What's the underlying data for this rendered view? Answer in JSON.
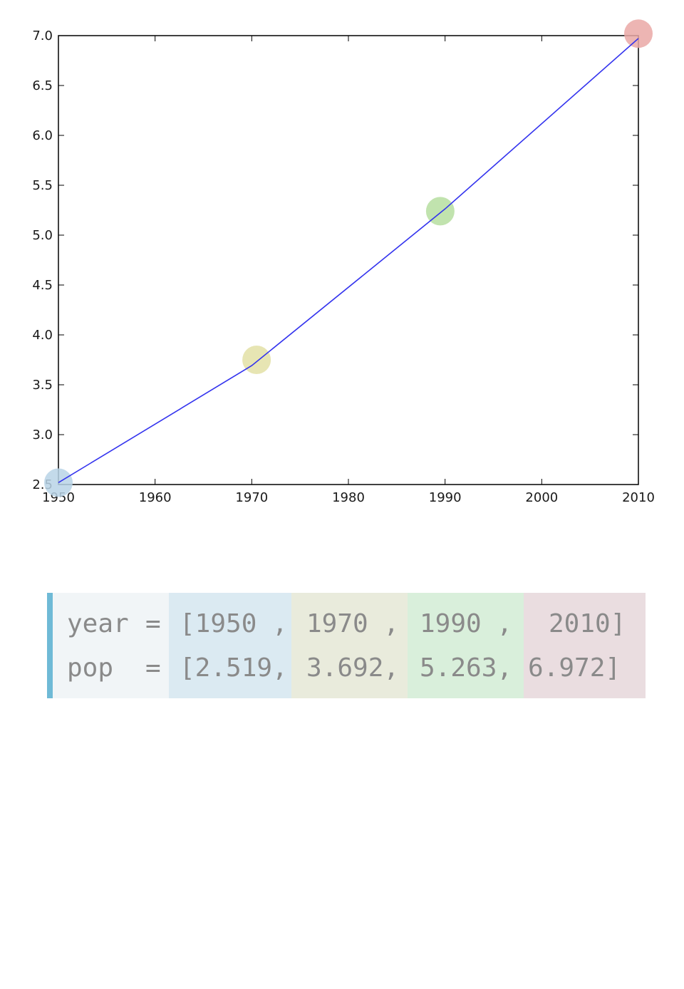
{
  "chart_data": {
    "type": "line",
    "x": [
      1950,
      1970,
      1990,
      2010
    ],
    "y": [
      2.519,
      3.692,
      5.263,
      6.972
    ],
    "xlim": [
      1950,
      2010
    ],
    "ylim": [
      2.5,
      7.0
    ],
    "xticks": [
      "1950",
      "1960",
      "1970",
      "1980",
      "1990",
      "2000",
      "2010"
    ],
    "yticks": [
      "2.5",
      "3.0",
      "3.5",
      "4.0",
      "4.5",
      "5.0",
      "5.5",
      "6.0",
      "6.5",
      "7.0"
    ],
    "line_color": "#3333ee",
    "highlight_markers": [
      {
        "x": 1950,
        "y": 2.519,
        "color": "#b9d4e6"
      },
      {
        "x": 1970.5,
        "y": 3.75,
        "color": "#e3e0a6"
      },
      {
        "x": 1989.5,
        "y": 5.24,
        "color": "#b6dea0"
      },
      {
        "x": 2010,
        "y": 7.02,
        "color": "#eaa8a6"
      }
    ],
    "grid": false,
    "title": "",
    "xlabel": "",
    "ylabel": ""
  },
  "code": {
    "row1": {
      "name": "year",
      "eq": "=",
      "c1": "[1950 ,",
      "c2": "1970 ,",
      "c3": "1990 ,",
      "c4": "2010]"
    },
    "row2": {
      "name": "pop",
      "eq": "=",
      "c1": "[2.519,",
      "c2": "3.692,",
      "c3": "5.263,",
      "c4": "6.972]"
    },
    "band_colors": [
      "#f1f5f7",
      "#dbeaf2",
      "#e9ebdc",
      "#d9efdb",
      "#eadde0"
    ],
    "accent_color": "#6fbad6"
  }
}
